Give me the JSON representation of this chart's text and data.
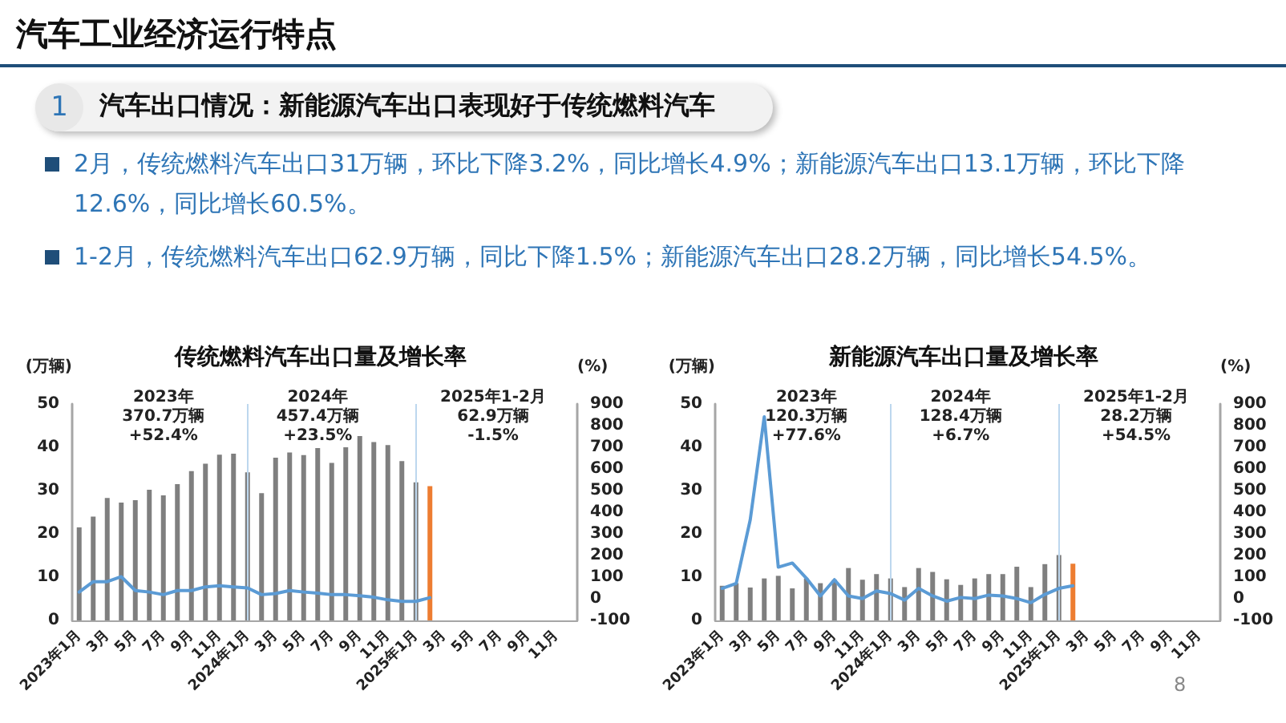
{
  "chart_data": [
    {
      "type": "other",
      "title": "汽车工业经济运行特点",
      "subtitle": "汽车出口情况：新能源汽车出口表现好于传统燃料汽车",
      "annotations": [
        "1",
        "2月，传统燃料汽车出口31万辆，环比下降3.2%，同比增长4.9%；新能源汽车出口13.1万辆，环比下降12.6%，同比增长60.5%。",
        "1-2月，传统燃料汽车出口62.9万辆，同比下降1.5%；新能源汽车出口28.2万辆，同比增长54.5%。",
        "8"
      ]
    },
    {
      "type": "bar",
      "title": "传统燃料汽车出口量及增长率",
      "ylabel": "(万辆)",
      "y2label": "(%)",
      "categories": [
        "2023年1月",
        null,
        "3月",
        null,
        "5月",
        null,
        "7月",
        null,
        "9月",
        null,
        "11月",
        null,
        "2024年1月",
        null,
        "3月",
        null,
        "5月",
        null,
        "7月",
        null,
        "9月",
        null,
        "11月",
        null,
        "2025年1月",
        null,
        "3月",
        null,
        "5月",
        null,
        "7月",
        null,
        "9月",
        null,
        "11月",
        null
      ],
      "series": [
        {
          "type": "bar",
          "colors": [
            "#7f7f7f",
            "#7f7f7f",
            "#7f7f7f",
            "#7f7f7f",
            "#7f7f7f",
            "#7f7f7f",
            "#7f7f7f",
            "#7f7f7f",
            "#7f7f7f",
            "#7f7f7f",
            "#7f7f7f",
            "#7f7f7f",
            "#7f7f7f",
            "#7f7f7f",
            "#7f7f7f",
            "#7f7f7f",
            "#7f7f7f",
            "#7f7f7f",
            "#7f7f7f",
            "#7f7f7f",
            "#7f7f7f",
            "#7f7f7f",
            "#7f7f7f",
            "#7f7f7f",
            "#7f7f7f",
            "#ed7d31",
            "#7f7f7f",
            "#7f7f7f",
            "#7f7f7f",
            "#7f7f7f",
            "#7f7f7f",
            "#7f7f7f",
            "#7f7f7f",
            "#7f7f7f",
            "#7f7f7f",
            "#7f7f7f"
          ],
          "values": [
            21.5,
            24,
            28.3,
            27.2,
            27.8,
            30.2,
            28.9,
            31.5,
            34.5,
            36.2,
            38.3,
            38.5,
            34.2,
            29.4,
            37.6,
            38.8,
            38.2,
            39.8,
            36.4,
            40,
            42.6,
            41.2,
            40.5,
            36.8,
            31.9,
            31,
            null,
            null,
            null,
            null,
            null,
            null,
            null,
            null,
            null,
            null
          ]
        },
        {
          "type": "line",
          "axis": "y2",
          "color": "#5b9bd5",
          "values": [
            31,
            79,
            79,
            102,
            38,
            31,
            19,
            38,
            38,
            55,
            60,
            55,
            50,
            19,
            24,
            38,
            31,
            26,
            19,
            19,
            14,
            7,
            -5,
            -12,
            -12,
            5,
            null,
            null,
            null,
            null,
            null,
            null,
            null,
            null,
            null,
            null
          ]
        }
      ],
      "ylim": [
        0,
        50
      ],
      "yticks": [
        0,
        10,
        20,
        30,
        40,
        50
      ],
      "y2lim": [
        -100,
        900
      ],
      "y2ticks": [
        -100,
        0,
        100,
        200,
        300,
        400,
        500,
        600,
        700,
        800,
        900
      ],
      "grid": false,
      "marker": "none",
      "line_style": "solid",
      "ref_lines": [
        {
          "axis": "x",
          "value": "2024年1月",
          "color": "#bdd7ee"
        },
        {
          "axis": "x",
          "value": "2025年1月",
          "color": "#bdd7ee"
        }
      ],
      "annotations": [
        "2023年\n370.7万辆\n+52.4%",
        "2024年\n457.4万辆\n+23.5%",
        "2025年1-2月\n62.9万辆\n-1.5%"
      ]
    },
    {
      "type": "bar",
      "title": "新能源汽车出口量及增长率",
      "ylabel": "(万辆)",
      "y2label": "(%)",
      "categories": [
        "2023年1月",
        null,
        "3月",
        null,
        "5月",
        null,
        "7月",
        null,
        "9月",
        null,
        "11月",
        null,
        "2024年1月",
        null,
        "3月",
        null,
        "5月",
        null,
        "7月",
        null,
        "9月",
        null,
        "11月",
        null,
        "2025年1月",
        null,
        "3月",
        null,
        "5月",
        null,
        "7月",
        null,
        "9月",
        null,
        "11月",
        null
      ],
      "series": [
        {
          "type": "bar",
          "colors": [
            "#7f7f7f",
            "#7f7f7f",
            "#7f7f7f",
            "#7f7f7f",
            "#7f7f7f",
            "#7f7f7f",
            "#7f7f7f",
            "#7f7f7f",
            "#7f7f7f",
            "#7f7f7f",
            "#7f7f7f",
            "#7f7f7f",
            "#7f7f7f",
            "#7f7f7f",
            "#7f7f7f",
            "#7f7f7f",
            "#7f7f7f",
            "#7f7f7f",
            "#7f7f7f",
            "#7f7f7f",
            "#7f7f7f",
            "#7f7f7f",
            "#7f7f7f",
            "#7f7f7f",
            "#7f7f7f",
            "#ed7d31",
            "#7f7f7f",
            "#7f7f7f",
            "#7f7f7f",
            "#7f7f7f",
            "#7f7f7f",
            "#7f7f7f",
            "#7f7f7f",
            "#7f7f7f",
            "#7f7f7f",
            "#7f7f7f"
          ],
          "values": [
            8.0,
            8.6,
            7.6,
            9.7,
            10.3,
            7.4,
            9.7,
            8.6,
            9.4,
            12.1,
            9.4,
            10.7,
            9.7,
            7.7,
            12.1,
            11.2,
            9.5,
            8.2,
            9.7,
            10.7,
            10.7,
            12.4,
            7.7,
            13.0,
            15.1,
            13.1,
            null,
            null,
            null,
            null,
            null,
            null,
            null,
            null,
            null,
            null
          ]
        },
        {
          "type": "line",
          "axis": "y2",
          "color": "#5b9bd5",
          "values": [
            48,
            71,
            365,
            841,
            146,
            165,
            95,
            13,
            88,
            13,
            1,
            36,
            24,
            -6,
            48,
            13,
            -11,
            6,
            1,
            17,
            13,
            1,
            -18,
            20,
            48,
            60,
            null,
            null,
            null,
            null,
            null,
            null,
            null,
            null,
            null,
            null
          ]
        }
      ],
      "ylim": [
        0,
        50
      ],
      "yticks": [
        0,
        10,
        20,
        30,
        40,
        50
      ],
      "y2lim": [
        -100,
        900
      ],
      "y2ticks": [
        -100,
        0,
        100,
        200,
        300,
        400,
        500,
        600,
        700,
        800,
        900
      ],
      "grid": false,
      "marker": "none",
      "line_style": "solid",
      "ref_lines": [
        {
          "axis": "x",
          "value": "2024年1月",
          "color": "#bdd7ee"
        },
        {
          "axis": "x",
          "value": "2025年1月",
          "color": "#bdd7ee"
        }
      ],
      "annotations": [
        "2023年\n120.3万辆\n+77.6%",
        "2024年\n128.4万辆\n+6.7%",
        "2025年1-2月\n28.2万辆\n+54.5%"
      ]
    }
  ]
}
